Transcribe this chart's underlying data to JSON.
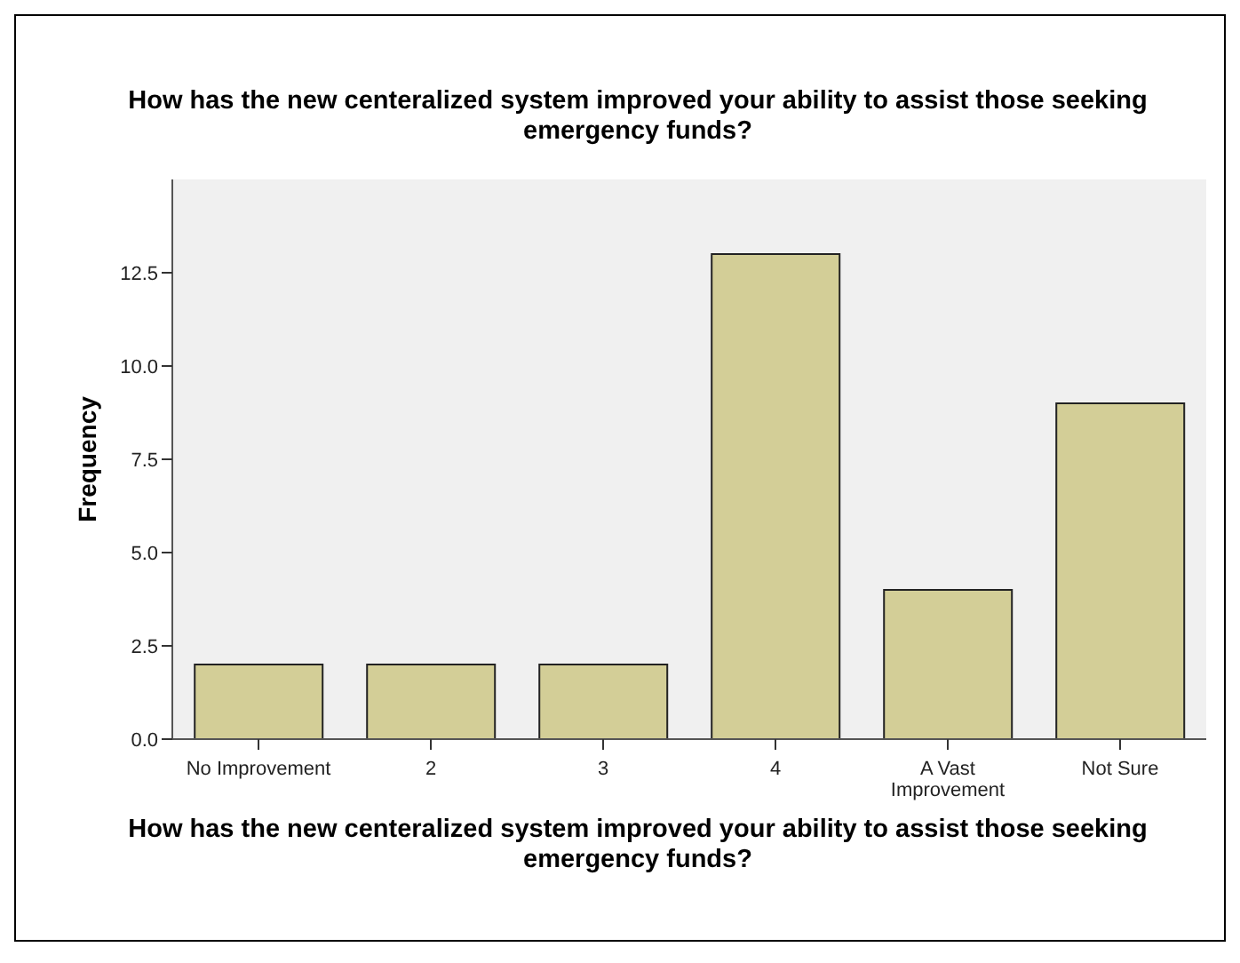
{
  "chart_data": {
    "type": "bar",
    "title": "How has the new centeralized system improved your ability to assist those seeking emergency funds?",
    "xlabel": "How has the new centeralized system improved your ability to assist those seeking emergency funds?",
    "ylabel": "Frequency",
    "categories": [
      "No Improvement",
      "2",
      "3",
      "4",
      "A Vast Improvement",
      "Not Sure"
    ],
    "values": [
      2,
      2,
      2,
      13,
      4,
      9
    ],
    "color": "#d3ce97",
    "ylim": [
      0,
      15
    ],
    "yticks": [
      {
        "value": 0,
        "label": "0.0"
      },
      {
        "value": 2.5,
        "label": "2.5"
      },
      {
        "value": 5,
        "label": "5.0"
      },
      {
        "value": 7.5,
        "label": "7.5"
      },
      {
        "value": 10,
        "label": "10.0"
      },
      {
        "value": 12.5,
        "label": "12.5"
      }
    ],
    "grid": false,
    "legend": false
  }
}
